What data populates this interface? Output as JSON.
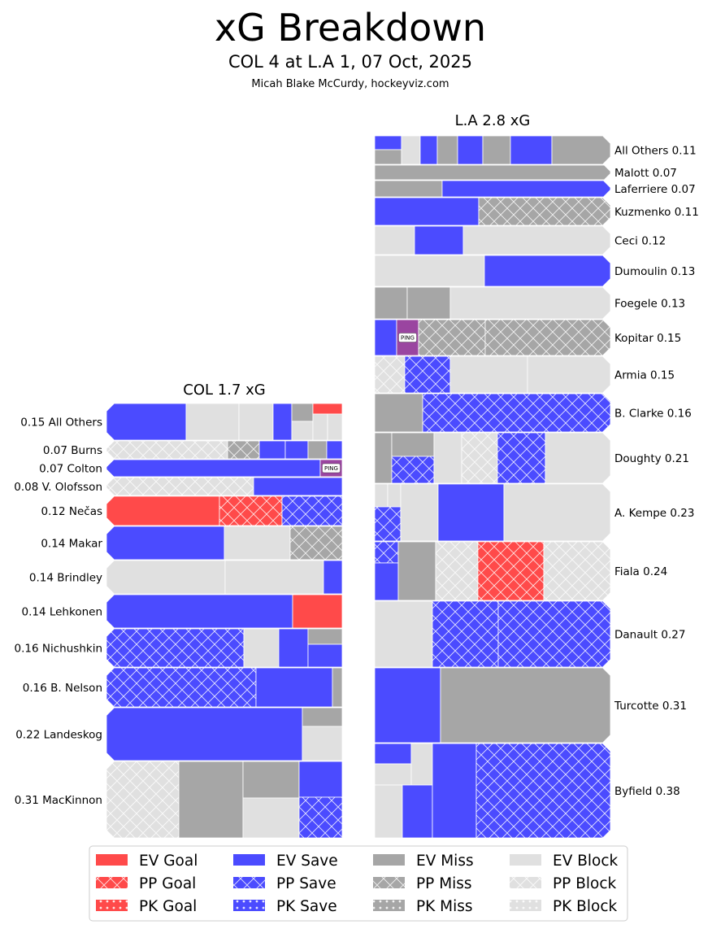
{
  "chart_data": {
    "type": "treemap",
    "title": "xG Breakdown",
    "subtitle": "COL 4 at L.A 1, 07 Oct, 2025",
    "credit": "Micah Blake McCurdy, hockeyviz.com",
    "colors": {
      "goal": "#ff4a4a",
      "save": "#4b4bff",
      "miss": "#a6a6a6",
      "block": "#e0e0e0",
      "ping": "#9a45a0"
    },
    "teams": [
      {
        "label": "COL 1.7 xG",
        "team": "COL",
        "xg": 1.7,
        "label_side": "left",
        "players": [
          {
            "name": "All Others",
            "xg": 0.15,
            "label": "0.15 All Others"
          },
          {
            "name": "Burns",
            "xg": 0.07,
            "label": "0.07 Burns"
          },
          {
            "name": "Colton",
            "xg": 0.07,
            "label": "0.07 Colton"
          },
          {
            "name": "V. Olofsson",
            "xg": 0.08,
            "label": "0.08 V. Olofsson"
          },
          {
            "name": "Nečas",
            "xg": 0.12,
            "label": "0.12 Nečas"
          },
          {
            "name": "Makar",
            "xg": 0.14,
            "label": "0.14 Makar"
          },
          {
            "name": "Brindley",
            "xg": 0.14,
            "label": "0.14 Brindley"
          },
          {
            "name": "Lehkonen",
            "xg": 0.14,
            "label": "0.14 Lehkonen"
          },
          {
            "name": "Nichushkin",
            "xg": 0.16,
            "label": "0.16 Nichushkin"
          },
          {
            "name": "B. Nelson",
            "xg": 0.16,
            "label": "0.16 B. Nelson"
          },
          {
            "name": "Landeskog",
            "xg": 0.22,
            "label": "0.22 Landeskog"
          },
          {
            "name": "MacKinnon",
            "xg": 0.31,
            "label": "0.31 MacKinnon"
          }
        ]
      },
      {
        "label": "L.A 2.8 xG",
        "team": "L.A",
        "xg": 2.8,
        "label_side": "right",
        "players": [
          {
            "name": "All Others",
            "xg": 0.11,
            "label": "All Others 0.11"
          },
          {
            "name": "Malott",
            "xg": 0.07,
            "label": "Malott 0.07"
          },
          {
            "name": "Laferriere",
            "xg": 0.07,
            "label": "Laferriere 0.07"
          },
          {
            "name": "Kuzmenko",
            "xg": 0.11,
            "label": "Kuzmenko 0.11"
          },
          {
            "name": "Ceci",
            "xg": 0.12,
            "label": "Ceci 0.12"
          },
          {
            "name": "Dumoulin",
            "xg": 0.13,
            "label": "Dumoulin 0.13"
          },
          {
            "name": "Foegele",
            "xg": 0.13,
            "label": "Foegele 0.13"
          },
          {
            "name": "Kopitar",
            "xg": 0.15,
            "label": "Kopitar 0.15"
          },
          {
            "name": "Armia",
            "xg": 0.15,
            "label": "Armia 0.15"
          },
          {
            "name": "B. Clarke",
            "xg": 0.16,
            "label": "B. Clarke 0.16"
          },
          {
            "name": "Doughty",
            "xg": 0.21,
            "label": "Doughty 0.21"
          },
          {
            "name": "A. Kempe",
            "xg": 0.23,
            "label": "A. Kempe 0.23"
          },
          {
            "name": "Fiala",
            "xg": 0.24,
            "label": "Fiala 0.24"
          },
          {
            "name": "Danault",
            "xg": 0.27,
            "label": "Danault 0.27"
          },
          {
            "name": "Turcotte",
            "xg": 0.31,
            "label": "Turcotte 0.31"
          },
          {
            "name": "Byfield",
            "xg": 0.38,
            "label": "Byfield 0.38"
          }
        ]
      }
    ],
    "ping_label": "PING",
    "legend": {
      "placement": "bottom",
      "entries": [
        {
          "label": "EV Goal",
          "outcome": "goal",
          "state": "EV"
        },
        {
          "label": "PP Goal",
          "outcome": "goal",
          "state": "PP"
        },
        {
          "label": "PK Goal",
          "outcome": "goal",
          "state": "PK"
        },
        {
          "label": "EV Save",
          "outcome": "save",
          "state": "EV"
        },
        {
          "label": "PP Save",
          "outcome": "save",
          "state": "PP"
        },
        {
          "label": "PK Save",
          "outcome": "save",
          "state": "PK"
        },
        {
          "label": "EV Miss",
          "outcome": "miss",
          "state": "EV"
        },
        {
          "label": "PP Miss",
          "outcome": "miss",
          "state": "PP"
        },
        {
          "label": "PK Miss",
          "outcome": "miss",
          "state": "PK"
        },
        {
          "label": "EV Block",
          "outcome": "block",
          "state": "EV"
        },
        {
          "label": "PP Block",
          "outcome": "block",
          "state": "PP"
        },
        {
          "label": "PK Block",
          "outcome": "block",
          "state": "PK"
        }
      ]
    }
  }
}
